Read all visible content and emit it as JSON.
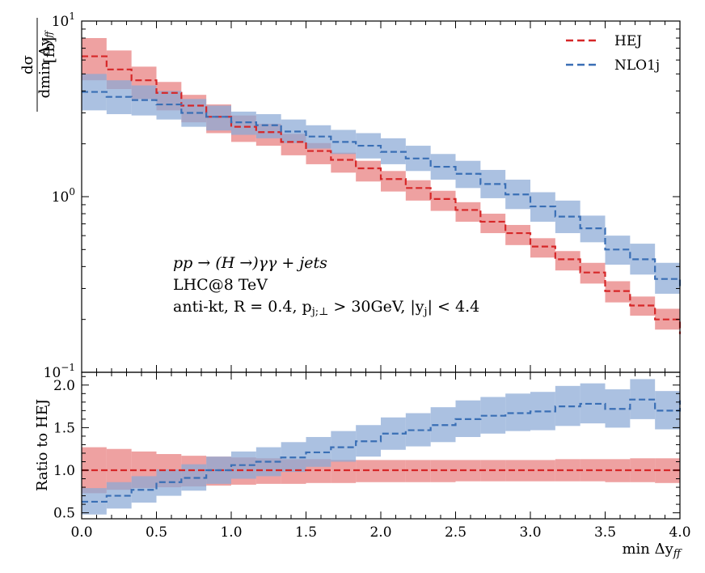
{
  "chart_data": {
    "type": "step",
    "bin_edges": [
      0.0,
      0.1667,
      0.3333,
      0.5,
      0.6667,
      0.8333,
      1.0,
      1.1667,
      1.3333,
      1.5,
      1.6667,
      1.8333,
      2.0,
      2.1667,
      2.3333,
      2.5,
      2.6667,
      2.8333,
      3.0,
      3.1667,
      3.3333,
      3.5,
      3.6667,
      3.8333,
      4.0
    ],
    "x_range": [
      0.0,
      4.0
    ],
    "x_ticks": [
      0.0,
      0.5,
      1.0,
      1.5,
      2.0,
      2.5,
      3.0,
      3.5,
      4.0
    ],
    "x_tick_labels": [
      "0.0",
      "0.5",
      "1.0",
      "1.5",
      "2.0",
      "2.5",
      "3.0",
      "3.5",
      "4.0"
    ],
    "xlabel": "min Δy",
    "xlabel_sub": "ff",
    "top_panel": {
      "yscale": "log",
      "y_range": [
        0.1,
        10
      ],
      "y_tick_labels": [
        {
          "value": 10,
          "base": "10",
          "exp": "1"
        },
        {
          "value": 1,
          "base": "10",
          "exp": "0"
        },
        {
          "value": 0.1,
          "base": "10",
          "exp": "−1"
        }
      ],
      "ylabel_num": "dσ",
      "ylabel_den": "dmin Δy",
      "ylabel_den_sub": "ff",
      "ylabel_unit": "[fb]",
      "series": [
        {
          "name": "HEJ",
          "color": "#d62728",
          "band_color": "#e87d7d",
          "values": [
            6.3,
            5.3,
            4.6,
            3.9,
            3.3,
            2.85,
            2.5,
            2.33,
            2.05,
            1.82,
            1.62,
            1.45,
            1.26,
            1.12,
            0.97,
            0.84,
            0.72,
            0.62,
            0.52,
            0.44,
            0.37,
            0.29,
            0.24,
            0.2,
            0.165
          ],
          "band_low": [
            4.6,
            4.1,
            3.6,
            3.1,
            2.65,
            2.3,
            2.05,
            1.95,
            1.72,
            1.53,
            1.37,
            1.22,
            1.07,
            0.95,
            0.83,
            0.72,
            0.62,
            0.53,
            0.45,
            0.38,
            0.32,
            0.25,
            0.21,
            0.175,
            0.14
          ],
          "band_high": [
            8.0,
            6.8,
            5.5,
            4.5,
            3.8,
            3.35,
            2.9,
            2.6,
            2.28,
            2.02,
            1.78,
            1.6,
            1.4,
            1.24,
            1.08,
            0.93,
            0.8,
            0.69,
            0.58,
            0.49,
            0.42,
            0.33,
            0.27,
            0.23,
            0.19
          ]
        },
        {
          "name": "NLO1j",
          "color": "#3a6fb5",
          "band_color": "#8aa9d6",
          "values": [
            3.95,
            3.7,
            3.55,
            3.35,
            3.0,
            2.85,
            2.65,
            2.55,
            2.35,
            2.2,
            2.05,
            1.95,
            1.8,
            1.65,
            1.48,
            1.35,
            1.18,
            1.03,
            0.88,
            0.77,
            0.66,
            0.5,
            0.44,
            0.34,
            0.3
          ],
          "band_low": [
            3.1,
            2.95,
            2.9,
            2.75,
            2.5,
            2.38,
            2.25,
            2.15,
            2.02,
            1.88,
            1.75,
            1.65,
            1.53,
            1.4,
            1.25,
            1.12,
            0.98,
            0.85,
            0.72,
            0.62,
            0.55,
            0.41,
            0.36,
            0.28,
            0.25
          ],
          "band_high": [
            5.0,
            4.6,
            4.3,
            4.0,
            3.6,
            3.3,
            3.05,
            2.95,
            2.75,
            2.55,
            2.4,
            2.3,
            2.15,
            1.95,
            1.75,
            1.6,
            1.42,
            1.25,
            1.06,
            0.95,
            0.78,
            0.6,
            0.54,
            0.42,
            0.37
          ]
        }
      ]
    },
    "bottom_panel": {
      "y_range": [
        0.43,
        2.15
      ],
      "y_ticks": [
        0.5,
        1.0,
        1.5,
        2.0
      ],
      "y_tick_labels": [
        "0.5",
        "1.0",
        "1.5",
        "2.0"
      ],
      "ylabel": "Ratio to HEJ",
      "series": [
        {
          "name": "HEJ",
          "values": [
            1.0,
            1.0,
            1.0,
            1.0,
            1.0,
            1.0,
            1.0,
            1.0,
            1.0,
            1.0,
            1.0,
            1.0,
            1.0,
            1.0,
            1.0,
            1.0,
            1.0,
            1.0,
            1.0,
            1.0,
            1.0,
            1.0,
            1.0,
            1.0,
            1.0
          ],
          "band_low": [
            0.73,
            0.77,
            0.79,
            0.8,
            0.81,
            0.82,
            0.83,
            0.84,
            0.84,
            0.85,
            0.85,
            0.86,
            0.86,
            0.86,
            0.86,
            0.87,
            0.87,
            0.87,
            0.87,
            0.87,
            0.87,
            0.86,
            0.86,
            0.85,
            0.85
          ],
          "band_high": [
            1.27,
            1.25,
            1.22,
            1.19,
            1.17,
            1.16,
            1.15,
            1.14,
            1.13,
            1.13,
            1.12,
            1.12,
            1.12,
            1.12,
            1.12,
            1.12,
            1.12,
            1.12,
            1.12,
            1.13,
            1.13,
            1.13,
            1.14,
            1.14,
            1.15
          ]
        },
        {
          "name": "NLO1j",
          "values": [
            0.63,
            0.7,
            0.77,
            0.86,
            0.91,
            1.0,
            1.06,
            1.1,
            1.15,
            1.21,
            1.27,
            1.34,
            1.43,
            1.47,
            1.53,
            1.6,
            1.64,
            1.67,
            1.69,
            1.75,
            1.78,
            1.72,
            1.83,
            1.7,
            1.82
          ],
          "band_low": [
            0.48,
            0.55,
            0.62,
            0.7,
            0.76,
            0.84,
            0.9,
            0.93,
            0.98,
            1.04,
            1.1,
            1.16,
            1.24,
            1.28,
            1.33,
            1.39,
            1.43,
            1.46,
            1.47,
            1.52,
            1.55,
            1.5,
            1.6,
            1.48,
            1.59
          ],
          "band_high": [
            0.79,
            0.86,
            0.93,
            1.01,
            1.07,
            1.16,
            1.22,
            1.27,
            1.33,
            1.39,
            1.46,
            1.53,
            1.62,
            1.67,
            1.74,
            1.82,
            1.86,
            1.9,
            1.92,
            1.99,
            2.02,
            1.95,
            2.07,
            1.93,
            2.06
          ]
        }
      ]
    },
    "legend": {
      "position": "top-right",
      "entries": [
        {
          "label": "HEJ",
          "color": "#d62728"
        },
        {
          "label": "NLO1j",
          "color": "#3a6fb5"
        }
      ]
    },
    "annotation": {
      "line1": "pp → (H →)γγ + jets",
      "line2": "LHC@8 TeV",
      "line3": "anti-kt, R = 0.4, p",
      "line3_sub": "j;⊥",
      "line3_rest": " > 30GeV, |y",
      "line3_sub2": "j",
      "line3_end": "| < 4.4"
    }
  }
}
